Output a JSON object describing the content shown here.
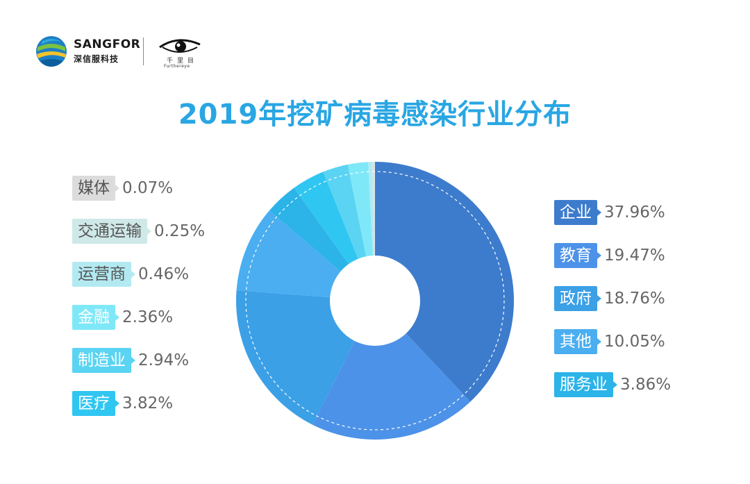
{
  "logos": {
    "sangfor_en": "SANGFOR",
    "sangfor_cn": "深信服科技",
    "eye_cn": "千里目",
    "eye_en": "Furthereye"
  },
  "chart_data": {
    "type": "pie",
    "title": "2019年挖矿病毒感染行业分布",
    "slices": [
      {
        "label": "企业",
        "value": 37.96,
        "display": "37.96%",
        "color": "#3d7ccc",
        "text_color": "#ffffff"
      },
      {
        "label": "教育",
        "value": 19.47,
        "display": "19.47%",
        "color": "#4c92e8",
        "text_color": "#ffffff"
      },
      {
        "label": "政府",
        "value": 18.76,
        "display": "18.76%",
        "color": "#3ba0e6",
        "text_color": "#ffffff"
      },
      {
        "label": "其他",
        "value": 10.05,
        "display": "10.05%",
        "color": "#4aaef0",
        "text_color": "#ffffff"
      },
      {
        "label": "服务业",
        "value": 3.86,
        "display": "3.86%",
        "color": "#2cb3e8",
        "text_color": "#ffffff"
      },
      {
        "label": "医疗",
        "value": 3.82,
        "display": "3.82%",
        "color": "#30c6f2",
        "text_color": "#ffffff"
      },
      {
        "label": "制造业",
        "value": 2.94,
        "display": "2.94%",
        "color": "#5ad4f2",
        "text_color": "#ffffff"
      },
      {
        "label": "金融",
        "value": 2.36,
        "display": "2.36%",
        "color": "#7fe8f8",
        "text_color": "#ffffff"
      },
      {
        "label": "运营商",
        "value": 0.46,
        "display": "0.46%",
        "color": "#b3eaf2",
        "text_color": "#555555"
      },
      {
        "label": "交通运输",
        "value": 0.25,
        "display": "0.25%",
        "color": "#cfe8e8",
        "text_color": "#555555"
      },
      {
        "label": "媒体",
        "value": 0.07,
        "display": "0.07%",
        "color": "#dcdcdc",
        "text_color": "#555555"
      }
    ],
    "legend_right": [
      "企业",
      "教育",
      "政府",
      "其他",
      "服务业"
    ],
    "legend_left": [
      "媒体",
      "交通运输",
      "运营商",
      "金融",
      "制造业",
      "医疗"
    ]
  }
}
